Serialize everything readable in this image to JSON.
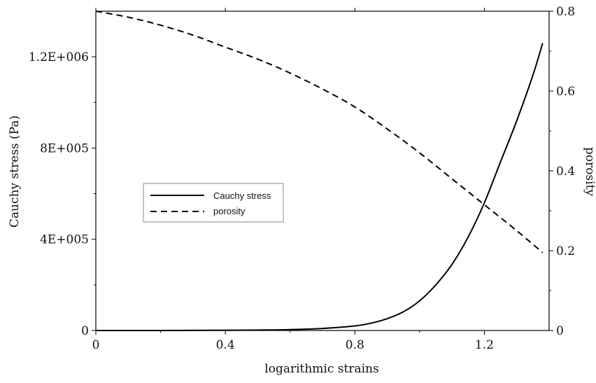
{
  "chart_data": {
    "type": "line",
    "xlabel": "logarithmic strains",
    "ylabel": "Cauchy stress (Pa)",
    "y2label": "porosity",
    "xlim": [
      0,
      1.4
    ],
    "ylim": [
      0,
      1400000
    ],
    "y2lim": [
      0,
      0.8
    ],
    "x_ticks": [
      0,
      0.4,
      0.8,
      1.2
    ],
    "x_tick_labels": [
      "0",
      "0.4",
      "0.8",
      "1.2"
    ],
    "y_ticks": [
      0,
      400000,
      800000,
      1200000
    ],
    "y_tick_labels": [
      "0",
      "4E+005",
      "8E+005",
      "1.2E+006"
    ],
    "y2_ticks": [
      0,
      0.2,
      0.4,
      0.6,
      0.8
    ],
    "y2_tick_labels": [
      "0",
      "0.2",
      "0.4",
      "0.6",
      "0.8"
    ],
    "legend_placement": "center-left",
    "grid": false,
    "series": [
      {
        "name": "Cauchy stress",
        "axis": "left",
        "style": "solid",
        "color": "#000000",
        "x": [
          0,
          0.2,
          0.4,
          0.5,
          0.6,
          0.7,
          0.8,
          0.85,
          0.9,
          0.95,
          1.0,
          1.05,
          1.1,
          1.15,
          1.2,
          1.25,
          1.3,
          1.35,
          1.38
        ],
        "y": [
          0,
          0,
          1000,
          2000,
          4000,
          9000,
          20000,
          32000,
          52000,
          82000,
          130000,
          200000,
          290000,
          410000,
          560000,
          740000,
          920000,
          1120000,
          1260000
        ]
      },
      {
        "name": "porosity",
        "axis": "right",
        "style": "dashed",
        "color": "#000000",
        "x": [
          0,
          0.1,
          0.2,
          0.3,
          0.4,
          0.5,
          0.6,
          0.7,
          0.8,
          0.9,
          1.0,
          1.1,
          1.2,
          1.3,
          1.38
        ],
        "y": [
          0.8,
          0.785,
          0.765,
          0.74,
          0.71,
          0.68,
          0.645,
          0.605,
          0.56,
          0.505,
          0.445,
          0.38,
          0.315,
          0.25,
          0.195
        ]
      }
    ]
  }
}
